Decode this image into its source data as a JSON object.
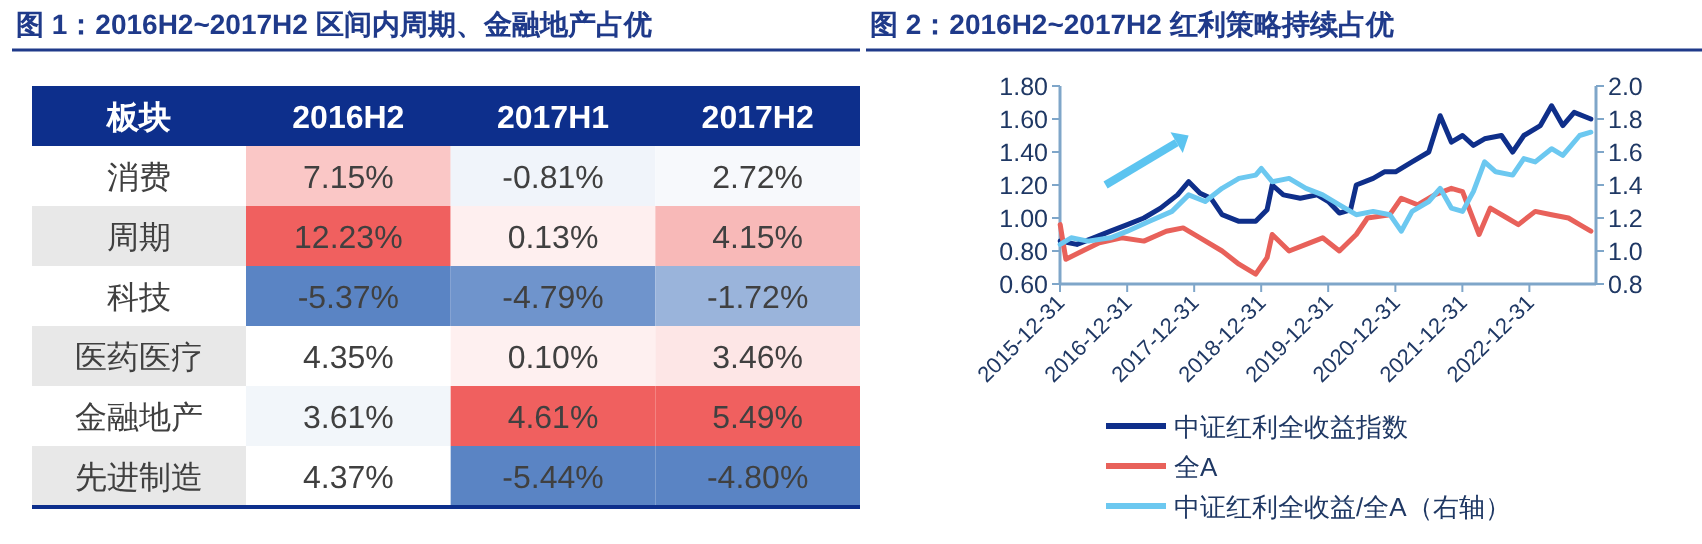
{
  "chart_data": [
    {
      "type": "heatmap",
      "title": "图 1：2016H2~2017H2 区间内周期、金融地产占优",
      "ylabel": "板块",
      "categories": [
        "2016H2",
        "2017H1",
        "2017H2"
      ],
      "y_categories": [
        "消费",
        "周期",
        "科技",
        "医药医疗",
        "金融地产",
        "先进制造"
      ],
      "cells": [
        [
          7.15,
          -0.81,
          2.72
        ],
        [
          12.23,
          0.13,
          4.15
        ],
        [
          -5.37,
          -4.79,
          -1.72
        ],
        [
          4.35,
          0.1,
          3.46
        ],
        [
          3.61,
          4.61,
          5.49
        ],
        [
          4.37,
          -5.44,
          -4.8
        ]
      ],
      "cell_labels": [
        [
          "7.15%",
          "-0.81%",
          "2.72%"
        ],
        [
          "12.23%",
          "0.13%",
          "4.15%"
        ],
        [
          "-5.37%",
          "-4.79%",
          "-1.72%"
        ],
        [
          "4.35%",
          "0.10%",
          "3.46%"
        ],
        [
          "3.61%",
          "4.61%",
          "5.49%"
        ],
        [
          "4.37%",
          "-5.44%",
          "-4.80%"
        ]
      ]
    },
    {
      "type": "line",
      "title": "图 2：2016H2~2017H2 红利策略持续占优",
      "legend": "bottom",
      "xlim": [
        "2015-12-31",
        "2023-12-29"
      ],
      "xticks": [
        "2015-12-31",
        "2016-12-31",
        "2017-12-31",
        "2018-12-31",
        "2019-12-31",
        "2020-12-31",
        "2021-12-31",
        "2022-12-31"
      ],
      "ylim": [
        0.6,
        1.8
      ],
      "yticks": [
        {
          "value": 0.6,
          "label": "0.60"
        },
        {
          "value": 0.8,
          "label": "0.80"
        },
        {
          "value": 1.0,
          "label": "1.00"
        },
        {
          "value": 1.2,
          "label": "1.20"
        },
        {
          "value": 1.4,
          "label": "1.40"
        },
        {
          "value": 1.6,
          "label": "1.60"
        },
        {
          "value": 1.8,
          "label": "1.80"
        }
      ],
      "y2lim": [
        0.8,
        2.0
      ],
      "y2ticks": [
        0.8,
        {
          "value": 1.0,
          "label": "1.0"
        },
        1.2,
        1.4,
        1.6,
        1.8,
        {
          "value": 2.0,
          "label": "2.0"
        }
      ],
      "series": [
        {
          "name": "中证红利全收益指数",
          "color": "#0f2f8a",
          "x": [
            "2016-01",
            "2016-04",
            "2016-07",
            "2016-10",
            "2017-01",
            "2017-04",
            "2017-07",
            "2017-10",
            "2017-12",
            "2018-02",
            "2018-04",
            "2018-06",
            "2018-09",
            "2018-12",
            "2019-02",
            "2019-03",
            "2019-05",
            "2019-08",
            "2019-11",
            "2020-01",
            "2020-03",
            "2020-05",
            "2020-06",
            "2020-09",
            "2020-11",
            "2021-01",
            "2021-04",
            "2021-07",
            "2021-09",
            "2021-11",
            "2022-01",
            "2022-03",
            "2022-05",
            "2022-08",
            "2022-10",
            "2022-12",
            "2023-03",
            "2023-05",
            "2023-07",
            "2023-09",
            "2023-12"
          ],
          "values": [
            0.86,
            0.84,
            0.88,
            0.92,
            0.96,
            1.0,
            1.06,
            1.14,
            1.22,
            1.15,
            1.12,
            1.02,
            0.98,
            0.98,
            1.05,
            1.2,
            1.14,
            1.12,
            1.14,
            1.1,
            1.03,
            1.05,
            1.2,
            1.24,
            1.28,
            1.28,
            1.34,
            1.4,
            1.62,
            1.46,
            1.5,
            1.44,
            1.48,
            1.5,
            1.4,
            1.5,
            1.56,
            1.68,
            1.56,
            1.64,
            1.6
          ]
        },
        {
          "name": "全A",
          "color": "#e8615a",
          "x": [
            "2016-01",
            "2016-02",
            "2016-05",
            "2016-08",
            "2016-12",
            "2017-04",
            "2017-08",
            "2017-11",
            "2018-02",
            "2018-06",
            "2018-09",
            "2018-12",
            "2019-02",
            "2019-03",
            "2019-06",
            "2019-09",
            "2019-12",
            "2020-03",
            "2020-06",
            "2020-08",
            "2020-12",
            "2021-02",
            "2021-05",
            "2021-08",
            "2021-11",
            "2022-01",
            "2022-04",
            "2022-06",
            "2022-09",
            "2022-11",
            "2023-02",
            "2023-05",
            "2023-08",
            "2023-10",
            "2023-12"
          ],
          "values": [
            0.96,
            0.75,
            0.8,
            0.85,
            0.88,
            0.86,
            0.92,
            0.94,
            0.88,
            0.8,
            0.72,
            0.66,
            0.76,
            0.9,
            0.8,
            0.84,
            0.88,
            0.8,
            0.9,
            1.0,
            1.02,
            1.12,
            1.08,
            1.14,
            1.18,
            1.16,
            0.9,
            1.06,
            1.0,
            0.96,
            1.04,
            1.02,
            1.0,
            0.96,
            0.92
          ]
        },
        {
          "name": "中证红利全收益/全A（右轴）",
          "color": "#6cc8f0",
          "axis": "y2",
          "x": [
            "2016-01",
            "2016-03",
            "2016-06",
            "2016-10",
            "2017-01",
            "2017-05",
            "2017-09",
            "2017-12",
            "2018-03",
            "2018-06",
            "2018-09",
            "2018-12",
            "2019-01",
            "2019-03",
            "2019-06",
            "2019-09",
            "2019-12",
            "2020-03",
            "2020-06",
            "2020-09",
            "2020-12",
            "2021-02",
            "2021-04",
            "2021-07",
            "2021-09",
            "2021-11",
            "2022-01",
            "2022-03",
            "2022-05",
            "2022-07",
            "2022-10",
            "2022-12",
            "2023-02",
            "2023-05",
            "2023-07",
            "2023-10",
            "2023-12"
          ],
          "values": [
            1.04,
            1.08,
            1.06,
            1.08,
            1.12,
            1.18,
            1.24,
            1.34,
            1.3,
            1.38,
            1.44,
            1.46,
            1.5,
            1.42,
            1.44,
            1.38,
            1.34,
            1.28,
            1.22,
            1.24,
            1.22,
            1.12,
            1.24,
            1.3,
            1.38,
            1.26,
            1.24,
            1.36,
            1.54,
            1.48,
            1.46,
            1.56,
            1.54,
            1.62,
            1.58,
            1.7,
            1.72
          ]
        }
      ]
    }
  ]
}
